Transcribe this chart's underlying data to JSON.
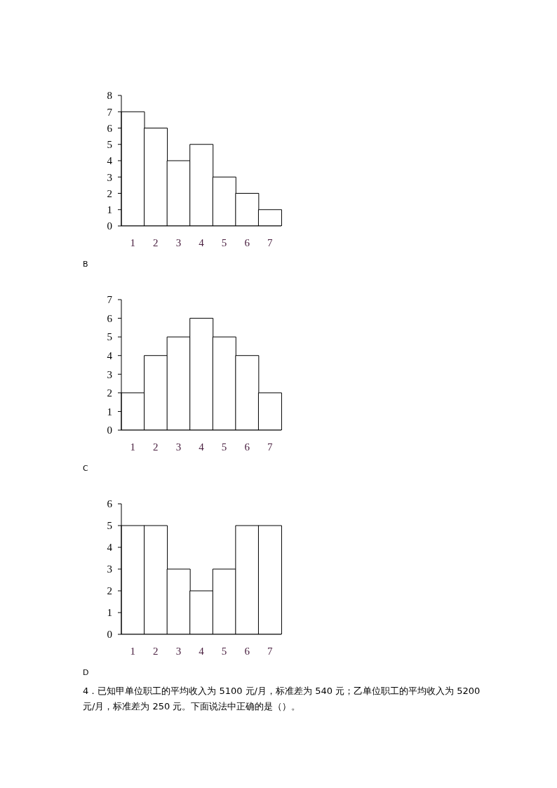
{
  "chart_data": [
    {
      "type": "bar",
      "categories": [
        "1",
        "2",
        "3",
        "4",
        "5",
        "6",
        "7"
      ],
      "values": [
        7,
        6,
        4,
        5,
        3,
        2,
        1
      ],
      "color": "#ffffff",
      "ylim": [
        0,
        8
      ],
      "yticks": [
        0,
        1,
        2,
        3,
        4,
        5,
        6,
        7,
        8
      ],
      "annotations": [
        "B"
      ]
    },
    {
      "type": "bar",
      "categories": [
        "1",
        "2",
        "3",
        "4",
        "5",
        "6",
        "7"
      ],
      "values": [
        2,
        4,
        5,
        6,
        5,
        4,
        2
      ],
      "color": "#ffffff",
      "ylim": [
        0,
        7
      ],
      "yticks": [
        0,
        1,
        2,
        3,
        4,
        5,
        6,
        7
      ],
      "annotations": [
        "C"
      ]
    },
    {
      "type": "bar",
      "categories": [
        "1",
        "2",
        "3",
        "4",
        "5",
        "6",
        "7"
      ],
      "values": [
        5,
        5,
        3,
        2,
        3,
        5,
        5
      ],
      "color": "#ffffff",
      "ylim": [
        0,
        6
      ],
      "yticks": [
        0,
        1,
        2,
        3,
        4,
        5,
        6
      ],
      "annotations": [
        "D",
        "4．已知甲单位职工的平均收入为 5100 元/月，标准差为 540 元；乙单位职工的平均收入为 5200 元/月，标准差为 250 元。下面说法中正确的是（）。"
      ]
    }
  ]
}
